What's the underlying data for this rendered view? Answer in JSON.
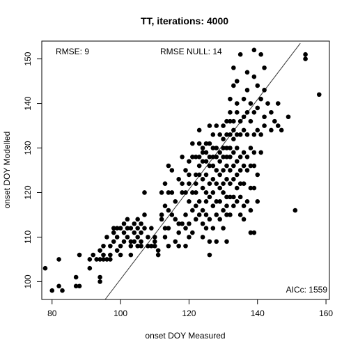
{
  "chart_data": {
    "type": "scatter",
    "title": "TT, iterations: 4000",
    "xlabel": "onset DOY Measured",
    "ylabel": "onset DOY Modelled",
    "xlim": [
      77,
      161
    ],
    "ylim": [
      96,
      154
    ],
    "xticks": [
      80,
      100,
      120,
      140,
      160
    ],
    "yticks": [
      100,
      110,
      120,
      130,
      140,
      150
    ],
    "grid": false,
    "annotations": {
      "rmse": "RMSE: 9",
      "rmse_null": "RMSE NULL: 14",
      "aicc": "AICc: 1559"
    },
    "reference_line": {
      "x": [
        95.5,
        152.5
      ],
      "y": [
        96,
        153.5
      ]
    },
    "points": [
      [
        78,
        103
      ],
      [
        80,
        98
      ],
      [
        82,
        99
      ],
      [
        82,
        105
      ],
      [
        83,
        98
      ],
      [
        87,
        101
      ],
      [
        87,
        99
      ],
      [
        88,
        99
      ],
      [
        88,
        106
      ],
      [
        91,
        103
      ],
      [
        91,
        105
      ],
      [
        92,
        106
      ],
      [
        93,
        105
      ],
      [
        94,
        105
      ],
      [
        94,
        107
      ],
      [
        94,
        101
      ],
      [
        94,
        100
      ],
      [
        95,
        105
      ],
      [
        95,
        108
      ],
      [
        95,
        106
      ],
      [
        96,
        105
      ],
      [
        96,
        110
      ],
      [
        97,
        108
      ],
      [
        97,
        106
      ],
      [
        97,
        105
      ],
      [
        98,
        109
      ],
      [
        98,
        111
      ],
      [
        98,
        112
      ],
      [
        99,
        112
      ],
      [
        99,
        110
      ],
      [
        99,
        107
      ],
      [
        100,
        108
      ],
      [
        100,
        112
      ],
      [
        100,
        106
      ],
      [
        101,
        111
      ],
      [
        101,
        113
      ],
      [
        101,
        109
      ],
      [
        102,
        110
      ],
      [
        102,
        112
      ],
      [
        102,
        114
      ],
      [
        103,
        109
      ],
      [
        103,
        112
      ],
      [
        103,
        108
      ],
      [
        103,
        106
      ],
      [
        104,
        113
      ],
      [
        104,
        111
      ],
      [
        104,
        109
      ],
      [
        105,
        114
      ],
      [
        105,
        112
      ],
      [
        105,
        110
      ],
      [
        105,
        108
      ],
      [
        106,
        113
      ],
      [
        106,
        111
      ],
      [
        106,
        109
      ],
      [
        106,
        108
      ],
      [
        107,
        115
      ],
      [
        107,
        112
      ],
      [
        107,
        120
      ],
      [
        108,
        108
      ],
      [
        108,
        110
      ],
      [
        109,
        108
      ],
      [
        109,
        112
      ],
      [
        110,
        109
      ],
      [
        110,
        110
      ],
      [
        110,
        108
      ],
      [
        111,
        107
      ],
      [
        111,
        106
      ],
      [
        112,
        114
      ],
      [
        112,
        115
      ],
      [
        112,
        120
      ],
      [
        113,
        112
      ],
      [
        113,
        110
      ],
      [
        113,
        122
      ],
      [
        113,
        117
      ],
      [
        114,
        120
      ],
      [
        114,
        116
      ],
      [
        114,
        112
      ],
      [
        114,
        108
      ],
      [
        114,
        126
      ],
      [
        115,
        125
      ],
      [
        115,
        120
      ],
      [
        115,
        115
      ],
      [
        116,
        118
      ],
      [
        116,
        114
      ],
      [
        116,
        109
      ],
      [
        117,
        113
      ],
      [
        117,
        111
      ],
      [
        117,
        108
      ],
      [
        117,
        123
      ],
      [
        118,
        122
      ],
      [
        118,
        120
      ],
      [
        118,
        128
      ],
      [
        118,
        113
      ],
      [
        119,
        120
      ],
      [
        119,
        125
      ],
      [
        119,
        115
      ],
      [
        119,
        112
      ],
      [
        119,
        108
      ],
      [
        120,
        122
      ],
      [
        120,
        118
      ],
      [
        120,
        113
      ],
      [
        120,
        110
      ],
      [
        120,
        124
      ],
      [
        120,
        127
      ],
      [
        121,
        120
      ],
      [
        121,
        116
      ],
      [
        121,
        128
      ],
      [
        121,
        131
      ],
      [
        121,
        111
      ],
      [
        122,
        124
      ],
      [
        122,
        128
      ],
      [
        122,
        122
      ],
      [
        122,
        117
      ],
      [
        122,
        114
      ],
      [
        122,
        120
      ],
      [
        123,
        131
      ],
      [
        123,
        126
      ],
      [
        123,
        124
      ],
      [
        123,
        118
      ],
      [
        123,
        115
      ],
      [
        123,
        134
      ],
      [
        123,
        128
      ],
      [
        124,
        130
      ],
      [
        124,
        127
      ],
      [
        124,
        123
      ],
      [
        124,
        121
      ],
      [
        124,
        116
      ],
      [
        124,
        113
      ],
      [
        124,
        110
      ],
      [
        124,
        129
      ],
      [
        125,
        131
      ],
      [
        125,
        129
      ],
      [
        125,
        127
      ],
      [
        125,
        124
      ],
      [
        125,
        120
      ],
      [
        125,
        118
      ],
      [
        125,
        115
      ],
      [
        125,
        112
      ],
      [
        126,
        135
      ],
      [
        126,
        131
      ],
      [
        126,
        128
      ],
      [
        126,
        126
      ],
      [
        126,
        122
      ],
      [
        126,
        119
      ],
      [
        126,
        114
      ],
      [
        126,
        109
      ],
      [
        126,
        106
      ],
      [
        127,
        133
      ],
      [
        127,
        130
      ],
      [
        127,
        128
      ],
      [
        127,
        126
      ],
      [
        127,
        123
      ],
      [
        127,
        120
      ],
      [
        127,
        117
      ],
      [
        127,
        112
      ],
      [
        128,
        135
      ],
      [
        128,
        130
      ],
      [
        128,
        128
      ],
      [
        128,
        125
      ],
      [
        128,
        122
      ],
      [
        128,
        118
      ],
      [
        128,
        115
      ],
      [
        128,
        109
      ],
      [
        129,
        133
      ],
      [
        129,
        129
      ],
      [
        129,
        127
      ],
      [
        129,
        124
      ],
      [
        129,
        121
      ],
      [
        129,
        118
      ],
      [
        129,
        114
      ],
      [
        130,
        135
      ],
      [
        130,
        132
      ],
      [
        130,
        130
      ],
      [
        130,
        128
      ],
      [
        130,
        125
      ],
      [
        130,
        122
      ],
      [
        130,
        120
      ],
      [
        130,
        116
      ],
      [
        130,
        112
      ],
      [
        131,
        136
      ],
      [
        131,
        133
      ],
      [
        131,
        130
      ],
      [
        131,
        128
      ],
      [
        131,
        126
      ],
      [
        131,
        123
      ],
      [
        131,
        119
      ],
      [
        131,
        117
      ],
      [
        131,
        115
      ],
      [
        131,
        109
      ],
      [
        132,
        136
      ],
      [
        132,
        133
      ],
      [
        132,
        130
      ],
      [
        132,
        128
      ],
      [
        132,
        125
      ],
      [
        132,
        122
      ],
      [
        132,
        119
      ],
      [
        132,
        115
      ],
      [
        132,
        141
      ],
      [
        132,
        138
      ],
      [
        133,
        136
      ],
      [
        133,
        134
      ],
      [
        133,
        132
      ],
      [
        133,
        129
      ],
      [
        133,
        126
      ],
      [
        133,
        123
      ],
      [
        133,
        119
      ],
      [
        133,
        117
      ],
      [
        133,
        148
      ],
      [
        133,
        144
      ],
      [
        134,
        138
      ],
      [
        134,
        133
      ],
      [
        134,
        130
      ],
      [
        134,
        127
      ],
      [
        134,
        124
      ],
      [
        134,
        121
      ],
      [
        134,
        118
      ],
      [
        134,
        140
      ],
      [
        134,
        145
      ],
      [
        135,
        136
      ],
      [
        135,
        133
      ],
      [
        135,
        128
      ],
      [
        135,
        125
      ],
      [
        135,
        122
      ],
      [
        135,
        119
      ],
      [
        135,
        115
      ],
      [
        135,
        151
      ],
      [
        136,
        141
      ],
      [
        136,
        137
      ],
      [
        136,
        134
      ],
      [
        136,
        129
      ],
      [
        136,
        126
      ],
      [
        136,
        122
      ],
      [
        136,
        117
      ],
      [
        136,
        114
      ],
      [
        137,
        147
      ],
      [
        137,
        143
      ],
      [
        137,
        138
      ],
      [
        137,
        133
      ],
      [
        137,
        128
      ],
      [
        137,
        125
      ],
      [
        137,
        118
      ],
      [
        138,
        140
      ],
      [
        138,
        136
      ],
      [
        138,
        130
      ],
      [
        138,
        126
      ],
      [
        138,
        121
      ],
      [
        138,
        116
      ],
      [
        138,
        111
      ],
      [
        139,
        152
      ],
      [
        139,
        146
      ],
      [
        139,
        138
      ],
      [
        139,
        133
      ],
      [
        139,
        129
      ],
      [
        139,
        126
      ],
      [
        139,
        121
      ],
      [
        139,
        111
      ],
      [
        140,
        144
      ],
      [
        140,
        139
      ],
      [
        140,
        134
      ],
      [
        140,
        124
      ],
      [
        140,
        118
      ],
      [
        141,
        151
      ],
      [
        141,
        141
      ],
      [
        141,
        133
      ],
      [
        141,
        129
      ],
      [
        142,
        148
      ],
      [
        142,
        143
      ],
      [
        142,
        137
      ],
      [
        142,
        135
      ],
      [
        143,
        140
      ],
      [
        144,
        134
      ],
      [
        144,
        138
      ],
      [
        145,
        136
      ],
      [
        146,
        140
      ],
      [
        146,
        135
      ],
      [
        147,
        134
      ],
      [
        149,
        137
      ],
      [
        151,
        116
      ],
      [
        154,
        150
      ],
      [
        154,
        151
      ],
      [
        158,
        142
      ]
    ]
  }
}
